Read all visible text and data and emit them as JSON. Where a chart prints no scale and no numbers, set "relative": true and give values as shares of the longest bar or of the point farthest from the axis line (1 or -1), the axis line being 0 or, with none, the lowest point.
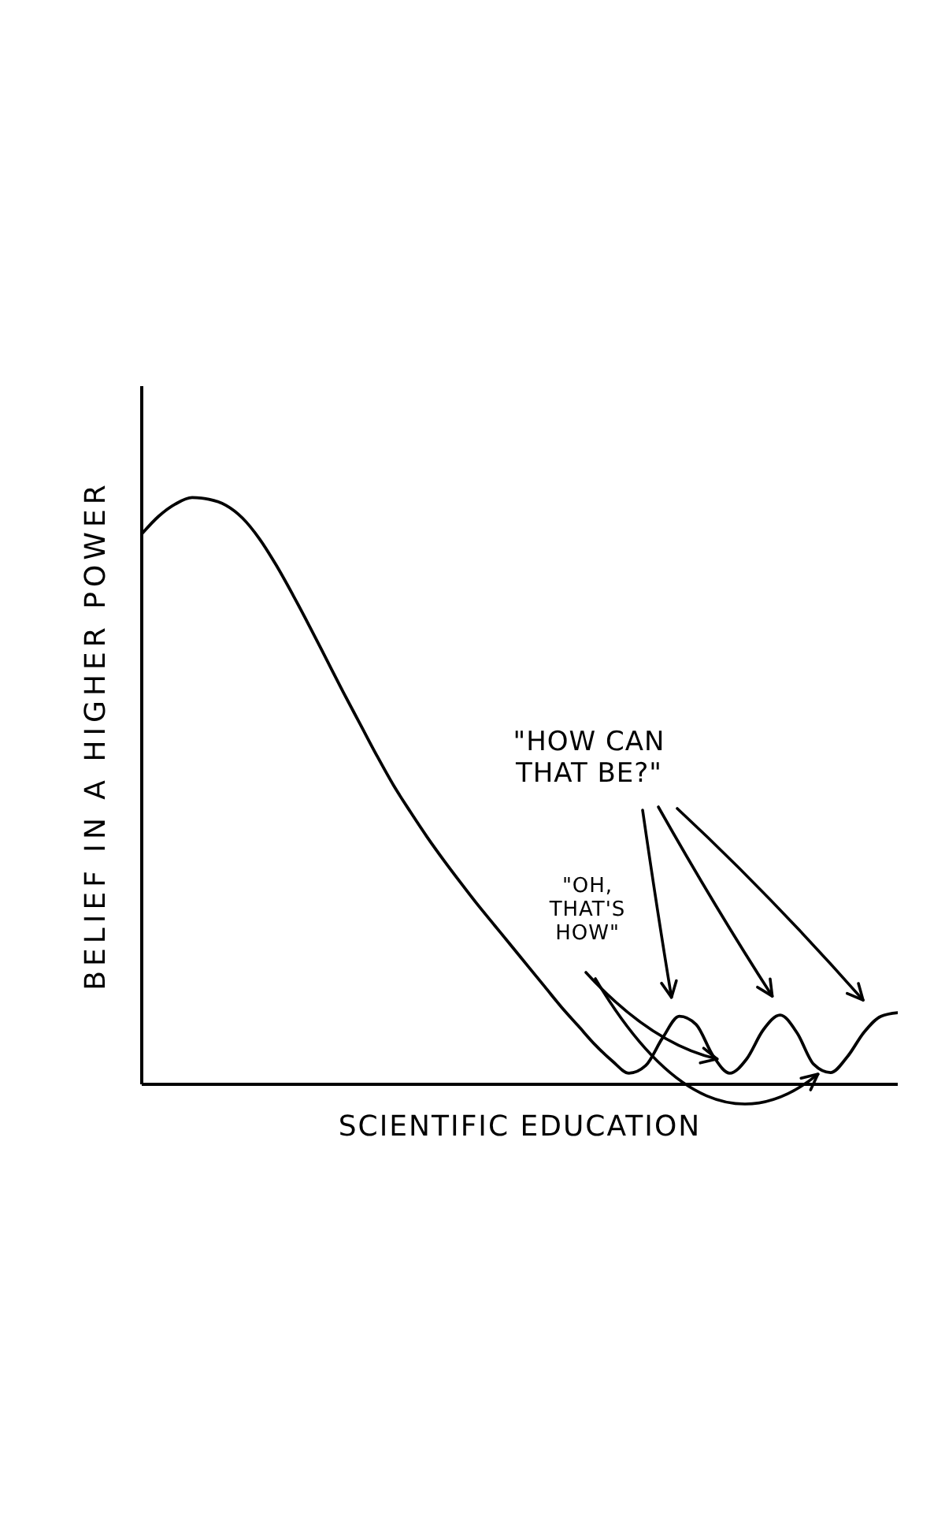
{
  "chart_data": {
    "type": "line",
    "relative": true,
    "xlabel": "SCIENTIFIC EDUCATION",
    "ylabel": "BELIEF IN A HIGHER POWER",
    "annotations": [
      "\"HOW CAN THAT BE?\"",
      "\"OH, THAT'S HOW\""
    ],
    "categories": [
      null,
      null,
      null,
      null,
      null,
      null,
      null,
      null,
      null,
      null,
      null,
      null,
      null,
      null,
      null,
      null,
      null,
      null,
      null,
      null,
      null,
      null,
      null,
      null,
      null,
      null,
      null,
      null,
      null,
      null,
      null,
      null,
      null,
      null,
      null,
      null,
      null,
      null,
      null,
      null,
      null,
      null,
      null,
      null,
      null,
      null
    ],
    "series": [
      {
        "color": "#000000",
        "values": [
          0.938,
          0.968,
          0.989,
          1,
          0.997,
          0.987,
          0.965,
          0.93,
          0.885,
          0.834,
          0.78,
          0.724,
          0.668,
          0.614,
          0.56,
          0.509,
          0.464,
          0.421,
          0.381,
          0.343,
          0.306,
          0.271,
          0.236,
          0.201,
          0.166,
          0.131,
          0.099,
          0.067,
          0.04,
          0.019,
          0.032,
          0.079,
          0.116,
          0.102,
          0.049,
          0.019,
          0.043,
          0.093,
          0.118,
          0.088,
          0.034,
          0.02,
          0.047,
          0.089,
          0.116,
          0.122
        ]
      }
    ]
  }
}
